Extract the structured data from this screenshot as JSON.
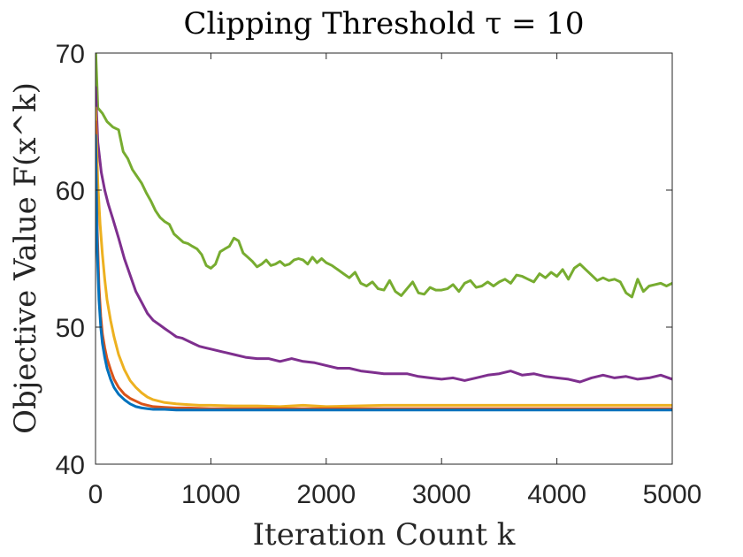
{
  "chart_data": {
    "type": "line",
    "title": "Clipping Threshold τ = 10",
    "xlabel": "Iteration Count k",
    "ylabel": "Objective Value F(x^k)",
    "xlim": [
      0,
      5000
    ],
    "ylim": [
      40,
      70
    ],
    "xticks": [
      0,
      1000,
      2000,
      3000,
      4000,
      5000
    ],
    "yticks": [
      40,
      50,
      60,
      70
    ],
    "xtick_labels": [
      "0",
      "1000",
      "2000",
      "3000",
      "4000",
      "5000"
    ],
    "ytick_labels": [
      "40",
      "50",
      "60",
      "70"
    ],
    "grid": false,
    "series": [
      {
        "name": "green",
        "color": "#77AC30",
        "x": [
          0,
          20,
          60,
          100,
          150,
          200,
          240,
          280,
          320,
          360,
          400,
          440,
          480,
          520,
          560,
          600,
          640,
          680,
          720,
          760,
          800,
          840,
          880,
          920,
          960,
          1000,
          1040,
          1080,
          1120,
          1160,
          1200,
          1240,
          1280,
          1320,
          1360,
          1400,
          1440,
          1480,
          1520,
          1560,
          1600,
          1640,
          1680,
          1720,
          1760,
          1800,
          1840,
          1880,
          1920,
          1960,
          2000,
          2050,
          2100,
          2150,
          2200,
          2250,
          2300,
          2350,
          2400,
          2450,
          2500,
          2550,
          2600,
          2650,
          2700,
          2750,
          2800,
          2850,
          2900,
          2950,
          3000,
          3050,
          3100,
          3150,
          3200,
          3250,
          3300,
          3350,
          3400,
          3450,
          3500,
          3550,
          3600,
          3650,
          3700,
          3750,
          3800,
          3850,
          3900,
          3950,
          4000,
          4050,
          4100,
          4150,
          4200,
          4250,
          4300,
          4350,
          4400,
          4450,
          4500,
          4550,
          4600,
          4650,
          4700,
          4750,
          4800,
          4850,
          4900,
          4950,
          5000
        ],
        "values": [
          70.5,
          66.0,
          65.6,
          65.0,
          64.6,
          64.4,
          62.8,
          62.3,
          61.5,
          61.0,
          60.5,
          59.8,
          59.2,
          58.5,
          58.0,
          57.7,
          57.5,
          56.8,
          56.5,
          56.2,
          56.1,
          55.9,
          55.7,
          55.3,
          54.5,
          54.3,
          54.6,
          55.5,
          55.7,
          55.9,
          56.5,
          56.3,
          55.4,
          55.1,
          54.8,
          54.4,
          54.6,
          54.9,
          54.5,
          54.6,
          54.8,
          54.5,
          54.6,
          54.9,
          55.0,
          54.9,
          54.6,
          55.1,
          54.7,
          55.0,
          54.7,
          54.5,
          54.2,
          53.9,
          53.6,
          54.0,
          53.2,
          53.0,
          53.3,
          52.8,
          52.7,
          53.4,
          52.6,
          52.3,
          52.8,
          53.3,
          52.5,
          52.4,
          52.9,
          52.7,
          52.7,
          52.8,
          53.1,
          52.6,
          53.2,
          53.4,
          52.9,
          53.0,
          53.3,
          53.0,
          53.3,
          53.5,
          53.2,
          53.8,
          53.7,
          53.5,
          53.3,
          53.9,
          53.6,
          54.0,
          53.7,
          54.2,
          53.5,
          54.3,
          54.6,
          54.2,
          53.8,
          53.4,
          53.6,
          53.4,
          53.5,
          53.3,
          52.5,
          52.2,
          53.5,
          52.6,
          53.0,
          53.1,
          53.2,
          53.0,
          53.2
        ]
      },
      {
        "name": "purple",
        "color": "#7E2F8E",
        "x": [
          0,
          20,
          50,
          80,
          110,
          150,
          200,
          250,
          300,
          350,
          400,
          450,
          500,
          550,
          600,
          650,
          700,
          750,
          800,
          850,
          900,
          950,
          1000,
          1100,
          1200,
          1300,
          1400,
          1500,
          1600,
          1700,
          1800,
          1900,
          2000,
          2100,
          2200,
          2300,
          2400,
          2500,
          2600,
          2700,
          2800,
          2900,
          3000,
          3100,
          3200,
          3300,
          3400,
          3500,
          3600,
          3700,
          3800,
          3900,
          4000,
          4100,
          4200,
          4300,
          4400,
          4500,
          4600,
          4700,
          4800,
          4900,
          5000
        ],
        "values": [
          67.5,
          63.5,
          61.3,
          60.0,
          59.0,
          57.9,
          56.5,
          55.0,
          53.8,
          52.6,
          51.8,
          51.0,
          50.5,
          50.2,
          49.9,
          49.6,
          49.3,
          49.2,
          49.0,
          48.8,
          48.6,
          48.5,
          48.4,
          48.2,
          48.0,
          47.8,
          47.7,
          47.7,
          47.5,
          47.7,
          47.5,
          47.4,
          47.2,
          47.0,
          47.0,
          46.8,
          46.7,
          46.6,
          46.6,
          46.6,
          46.4,
          46.3,
          46.2,
          46.3,
          46.1,
          46.3,
          46.5,
          46.6,
          46.8,
          46.5,
          46.6,
          46.4,
          46.3,
          46.2,
          46.0,
          46.3,
          46.5,
          46.3,
          46.4,
          46.2,
          46.3,
          46.5,
          46.2
        ]
      },
      {
        "name": "yellow",
        "color": "#EDB120",
        "x": [
          0,
          20,
          40,
          60,
          80,
          100,
          130,
          160,
          200,
          250,
          300,
          350,
          400,
          450,
          500,
          550,
          600,
          700,
          800,
          900,
          1000,
          1200,
          1400,
          1600,
          1800,
          2000,
          2500,
          3000,
          3500,
          4000,
          4500,
          5000
        ],
        "values": [
          66.0,
          60.5,
          57.5,
          55.3,
          53.5,
          52.0,
          50.5,
          49.3,
          48.0,
          46.9,
          46.1,
          45.6,
          45.2,
          44.9,
          44.7,
          44.6,
          44.5,
          44.4,
          44.35,
          44.3,
          44.3,
          44.25,
          44.25,
          44.2,
          44.3,
          44.2,
          44.3,
          44.3,
          44.3,
          44.3,
          44.3,
          44.3
        ]
      },
      {
        "name": "orange",
        "color": "#D95319",
        "x": [
          0,
          15,
          30,
          45,
          60,
          80,
          100,
          130,
          160,
          200,
          250,
          300,
          350,
          400,
          450,
          500,
          600,
          700,
          800,
          1000,
          1500,
          2000,
          3000,
          4000,
          5000
        ],
        "values": [
          65.0,
          57.0,
          53.0,
          50.8,
          49.5,
          48.5,
          47.7,
          46.9,
          46.2,
          45.6,
          45.1,
          44.8,
          44.6,
          44.4,
          44.3,
          44.2,
          44.15,
          44.1,
          44.1,
          44.05,
          44.05,
          44.05,
          44.05,
          44.05,
          44.05
        ]
      },
      {
        "name": "blue",
        "color": "#0072BD",
        "x": [
          0,
          15,
          30,
          45,
          60,
          80,
          100,
          130,
          160,
          200,
          250,
          300,
          350,
          400,
          450,
          500,
          600,
          700,
          800,
          1000,
          1500,
          2000,
          3000,
          4000,
          5000
        ],
        "values": [
          64.0,
          55.5,
          52.0,
          50.0,
          48.8,
          47.8,
          47.0,
          46.2,
          45.6,
          45.1,
          44.7,
          44.4,
          44.2,
          44.1,
          44.05,
          44.0,
          44.0,
          43.95,
          43.95,
          43.95,
          43.95,
          43.95,
          43.95,
          43.95,
          43.95
        ]
      }
    ]
  }
}
